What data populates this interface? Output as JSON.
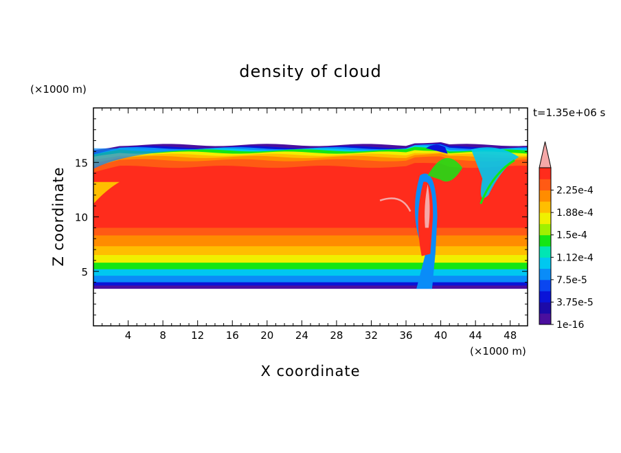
{
  "chart_data": {
    "type": "heatmap",
    "title": "density of cloud",
    "time_label": "t=1.35e+06 s",
    "xlabel": "X coordinate",
    "ylabel": "Z coordinate",
    "x_unit_label": "(×1000 m)",
    "y_unit_label": "(×1000 m)",
    "xlim": [
      0,
      50
    ],
    "ylim": [
      0,
      20
    ],
    "x_ticks": [
      "4",
      "8",
      "12",
      "16",
      "20",
      "24",
      "28",
      "32",
      "36",
      "40",
      "44",
      "48"
    ],
    "y_ticks": [
      "5",
      "10",
      "15"
    ],
    "colorbar": {
      "levels": [
        {
          "value": 1e-16,
          "color": "#4b0f9e"
        },
        {
          "value": 1.875e-05,
          "color": "#1c0aa8"
        },
        {
          "value": 3.75e-05,
          "color": "#0a14d8"
        },
        {
          "value": 5.625e-05,
          "color": "#0a46f0"
        },
        {
          "value": 7.5e-05,
          "color": "#0a8cf8"
        },
        {
          "value": 9.375e-05,
          "color": "#00c8f0"
        },
        {
          "value": 0.0001125,
          "color": "#00e6b4"
        },
        {
          "value": 0.00013125,
          "color": "#14e614"
        },
        {
          "value": 0.00015,
          "color": "#a0f000"
        },
        {
          "value": 0.00016875,
          "color": "#f0f000"
        },
        {
          "value": 0.0001875,
          "color": "#ffbe00"
        },
        {
          "value": 0.00020625,
          "color": "#ff8c00"
        },
        {
          "value": 0.000225,
          "color": "#ff5a14"
        },
        {
          "value": 0.00024375,
          "color": "#ff2c1c"
        },
        {
          "value": 0.00026,
          "color": "#f5a8a8"
        }
      ],
      "tick_labels": [
        "1e-16",
        "3.75e-5",
        "7.5e-5",
        "1.12e-4",
        "1.5e-4",
        "1.88e-4",
        "2.25e-4"
      ]
    },
    "field_layers": [
      {
        "z_bottom": 3.4,
        "z_top": 16.6,
        "color": "#4b0f9e"
      },
      {
        "z_bottom": 3.7,
        "z_top": 16.4,
        "color": "#0a14d8"
      },
      {
        "z_bottom": 4.0,
        "z_top": 16.3,
        "color": "#0a8cf8"
      },
      {
        "z_bottom": 4.6,
        "z_top": 16.2,
        "color": "#00c8f0"
      },
      {
        "z_bottom": 5.2,
        "z_top": 16.1,
        "color": "#14e614"
      },
      {
        "z_bottom": 5.8,
        "z_top": 15.9,
        "color": "#f0f000"
      },
      {
        "z_bottom": 6.5,
        "z_top": 15.7,
        "color": "#ffbe00"
      },
      {
        "z_bottom": 7.3,
        "z_top": 15.5,
        "color": "#ff8c00"
      },
      {
        "z_bottom": 8.3,
        "z_top": 15.2,
        "color": "#ff5a14"
      },
      {
        "z_bottom": 9.0,
        "z_top": 14.6,
        "color": "#ff2c1c"
      }
    ]
  }
}
